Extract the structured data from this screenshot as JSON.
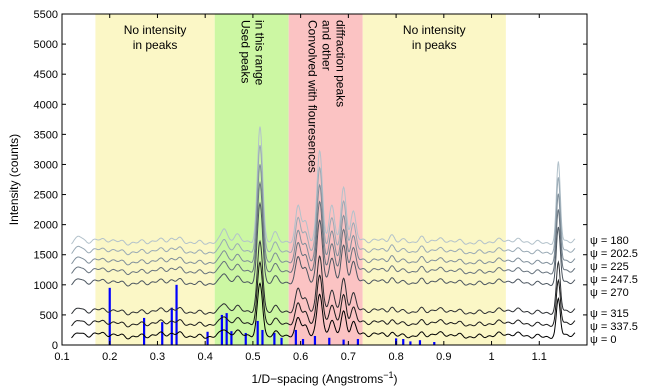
{
  "chart_data": {
    "type": "line",
    "xlabel": "1/D−spacing (Angstroms",
    "xlabel_sup": "−1",
    "xlabel_close": ")",
    "ylabel": "Intensity (counts)",
    "xlim": [
      0.1,
      1.2
    ],
    "ylim": [
      0,
      5500
    ],
    "xticks": [
      0.1,
      0.2,
      0.3,
      0.4,
      0.5,
      0.6,
      0.7,
      0.8,
      0.9,
      1,
      1.1
    ],
    "yticks": [
      0,
      500,
      1000,
      1500,
      2000,
      2500,
      3000,
      3500,
      4000,
      4500,
      5000,
      5500
    ],
    "regions": [
      {
        "x0": 0.17,
        "x1": 0.42,
        "color": "#fbf7c6",
        "label": [
          "No intensity",
          "in peaks"
        ],
        "orientation": "horizontal"
      },
      {
        "x0": 0.42,
        "x1": 0.575,
        "color": "#ccf7a3",
        "label": [
          "Used peaks",
          "in this range"
        ],
        "orientation": "vertical"
      },
      {
        "x0": 0.575,
        "x1": 0.73,
        "color": "#fbc3c3",
        "label": [
          "Convolved with flouresences",
          "and other",
          "diffraction peaks"
        ],
        "orientation": "vertical"
      },
      {
        "x0": 0.73,
        "x1": 1.03,
        "color": "#fbf7c6",
        "label": [
          "No intensity",
          "in peaks"
        ],
        "orientation": "horizontal"
      }
    ],
    "series": [
      {
        "name": "ψ = 180",
        "baseline": 1720,
        "color": "#b3c2cb"
      },
      {
        "name": "ψ = 202.5",
        "baseline": 1560,
        "color": "#9aaab5"
      },
      {
        "name": "ψ = 225",
        "baseline": 1390,
        "color": "#7f8e9a"
      },
      {
        "name": "ψ = 247.5",
        "baseline": 1230,
        "color": "#67737e"
      },
      {
        "name": "ψ = 270",
        "baseline": 1040,
        "color": "#4c5660"
      },
      {
        "name": "ψ = 315",
        "baseline": 560,
        "color": "#2c2f33"
      },
      {
        "name": "ψ = 337.5",
        "baseline": 360,
        "color": "#1a1a1a"
      },
      {
        "name": "ψ = 0",
        "baseline": 160,
        "color": "#000000"
      }
    ],
    "peaks": [
      {
        "x": 0.135,
        "h": 90
      },
      {
        "x": 0.2,
        "h": 20
      },
      {
        "x": 0.272,
        "h": 15
      },
      {
        "x": 0.33,
        "h": 30
      },
      {
        "x": 0.345,
        "h": 25
      },
      {
        "x": 0.44,
        "h": 220
      },
      {
        "x": 0.465,
        "h": 80
      },
      {
        "x": 0.515,
        "h": 1900
      },
      {
        "x": 0.545,
        "h": 180
      },
      {
        "x": 0.595,
        "h": 550
      },
      {
        "x": 0.61,
        "h": 300
      },
      {
        "x": 0.64,
        "h": 1500
      },
      {
        "x": 0.665,
        "h": 650
      },
      {
        "x": 0.69,
        "h": 900
      },
      {
        "x": 0.71,
        "h": 500
      },
      {
        "x": 0.79,
        "h": 120
      },
      {
        "x": 0.82,
        "h": 70
      },
      {
        "x": 0.855,
        "h": 60
      },
      {
        "x": 1.14,
        "h": 1300
      }
    ],
    "reference_sticks": [
      {
        "x": 0.2,
        "h": 950
      },
      {
        "x": 0.272,
        "h": 450
      },
      {
        "x": 0.31,
        "h": 380
      },
      {
        "x": 0.33,
        "h": 620
      },
      {
        "x": 0.34,
        "h": 1000
      },
      {
        "x": 0.405,
        "h": 220
      },
      {
        "x": 0.435,
        "h": 500
      },
      {
        "x": 0.445,
        "h": 530
      },
      {
        "x": 0.455,
        "h": 230
      },
      {
        "x": 0.485,
        "h": 200
      },
      {
        "x": 0.51,
        "h": 400
      },
      {
        "x": 0.52,
        "h": 250
      },
      {
        "x": 0.545,
        "h": 200
      },
      {
        "x": 0.56,
        "h": 120
      },
      {
        "x": 0.59,
        "h": 250
      },
      {
        "x": 0.605,
        "h": 100
      },
      {
        "x": 0.63,
        "h": 150
      },
      {
        "x": 0.66,
        "h": 120
      },
      {
        "x": 0.69,
        "h": 90
      },
      {
        "x": 0.72,
        "h": 100
      },
      {
        "x": 0.8,
        "h": 110
      },
      {
        "x": 0.815,
        "h": 100
      },
      {
        "x": 0.83,
        "h": 60
      },
      {
        "x": 0.85,
        "h": 80
      },
      {
        "x": 0.88,
        "h": 50
      }
    ],
    "reference_color": "#0000ff",
    "grid": false,
    "legend": "right-labels"
  }
}
